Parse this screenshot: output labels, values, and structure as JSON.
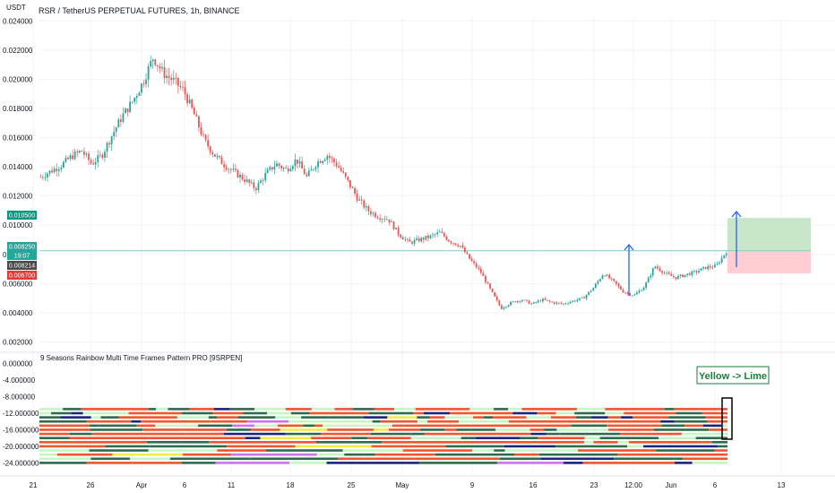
{
  "header": {
    "currency": "USDT",
    "symbol_title": "RSR / TetherUS PERPETUAL FUTURES, 1h, BINANCE"
  },
  "indicator": {
    "title": "9 Seasons Rainbow Multi Time Frames Pattern PRO [9SRPEN]",
    "annotation": "Yellow -> Lime"
  },
  "badges": [
    {
      "label": "0.010500",
      "color": "#089981"
    },
    {
      "label": "0.008250",
      "color": "#26a69a"
    },
    {
      "label": "19:07",
      "color": "#26a69a"
    },
    {
      "label": "0.008214",
      "color": "#4a4a4a"
    },
    {
      "label": "0.006700",
      "color": "#e53935"
    }
  ],
  "colors": {
    "up": "#26a69a",
    "down": "#ef5350",
    "arrow": "#2962ff",
    "profit_zone": "#c8e6c9",
    "loss_zone": "#ffcdd2",
    "annotation": "#1b7f3b",
    "dark_green": "#2e6b4e",
    "orange_red": "#f0552c",
    "lime": "#c6f7c3",
    "navy": "#1a237e",
    "violet": "#d070f0",
    "yellow": "#f5e94c"
  },
  "chart_data": [
    {
      "type": "line",
      "title": "RSR / TetherUS PERPETUAL FUTURES, 1h, BINANCE",
      "ylabel": "USDT",
      "ylim": [
        0.0016,
        0.0242
      ],
      "y_ticks": [
        "0.002000",
        "0.004000",
        "0.006000",
        "0.008000",
        "0.010000",
        "0.012000",
        "0.014000",
        "0.016000",
        "0.018000",
        "0.020000",
        "0.022000",
        "0.024000"
      ],
      "x_ticks": [
        "21",
        "26",
        "Apr",
        "6",
        "11",
        "18",
        "25",
        "May",
        "9",
        "16",
        "23",
        "12:00",
        "Jun",
        "6",
        "13"
      ],
      "series": [
        {
          "values": [
            0.0133,
            0.0137,
            0.0141,
            0.0147,
            0.0151,
            0.0142,
            0.0148,
            0.0162,
            0.0175,
            0.0185,
            0.0198,
            0.0215,
            0.0204,
            0.0199,
            0.0192,
            0.0176,
            0.0158,
            0.0148,
            0.0141,
            0.0136,
            0.0131,
            0.0125,
            0.0135,
            0.0142,
            0.0138,
            0.0145,
            0.0133,
            0.0143,
            0.0148,
            0.0141,
            0.013,
            0.0118,
            0.011,
            0.0106,
            0.0104,
            0.0094,
            0.0088,
            0.009,
            0.0092,
            0.0095,
            0.0089,
            0.0086,
            0.0076,
            0.0068,
            0.0055,
            0.0043,
            0.0047,
            0.0049,
            0.0046,
            0.0049,
            0.0047,
            0.0046,
            0.0048,
            0.005,
            0.0057,
            0.0067,
            0.0061,
            0.0054,
            0.0052,
            0.0058,
            0.0072,
            0.0067,
            0.0064,
            0.0066,
            0.0068,
            0.0071,
            0.0072,
            0.0082
          ]
        }
      ],
      "annotations": [
        {
          "type": "arrow",
          "direction": "up"
        },
        {
          "type": "arrow",
          "direction": "up"
        },
        {
          "type": "position",
          "entry": 0.00825,
          "target": 0.0105,
          "stop": 0.0067
        }
      ]
    },
    {
      "type": "heatmap",
      "title": "9 Seasons Rainbow Multi Time Frames Pattern PRO [9SRPEN]",
      "ylim": [
        -25,
        1
      ],
      "y_ticks": [
        "0.000000",
        "-4.000000",
        "-8.000000",
        "-12.000000",
        "-16.000000",
        "-20.000000",
        "-24.000000"
      ],
      "rows": [
        -11,
        -12,
        -13,
        -14,
        -15,
        -16,
        -17,
        -18,
        -19,
        -20,
        -21,
        -22,
        -23,
        -24
      ]
    }
  ]
}
